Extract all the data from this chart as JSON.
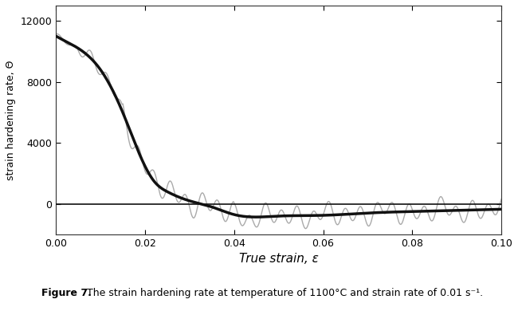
{
  "xlabel": "True strain, ε",
  "ylabel": "strain hardening rate, Θ",
  "xlim": [
    0.0,
    0.1
  ],
  "ylim": [
    -2000,
    13000
  ],
  "yticks": [
    0,
    4000,
    8000,
    12000
  ],
  "xticks": [
    0.0,
    0.02,
    0.04,
    0.06,
    0.08,
    0.1
  ],
  "caption_bold": "Figure 7.",
  "caption_normal": " The strain hardening rate at temperature of 1100°C and strain rate of 0.01 s⁻¹.",
  "noisy_color": "#aaaaaa",
  "smooth_color": "#111111",
  "background_color": "#ffffff",
  "smooth_lw": 2.5,
  "noisy_lw": 1.0,
  "zero_line_lw": 1.2
}
